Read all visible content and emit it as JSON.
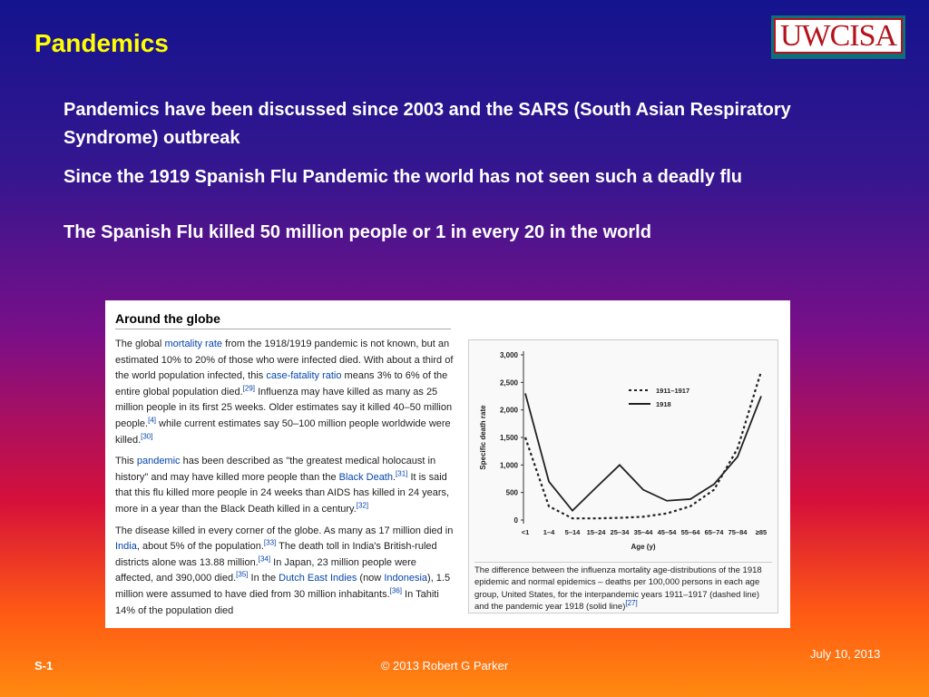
{
  "slide": {
    "title": "Pandemics",
    "logo": "UWCISA",
    "bullets": [
      "Pandemics have been discussed since 2003 and the SARS (South Asian Respiratory Syndrome) outbreak",
      "Since the 1919 Spanish Flu Pandemic the world has  not seen such a deadly flu",
      "The Spanish Flu killed 50 million people or 1 in every 20 in the world"
    ],
    "footer": {
      "left": "S-1",
      "center": "© 2013  Robert G Parker",
      "right": "July 10, 2013"
    }
  },
  "article": {
    "heading": "Around the globe",
    "paragraphs": [
      [
        {
          "t": "The global "
        },
        {
          "t": "mortality rate",
          "s": "link"
        },
        {
          "t": " from the 1918/1919 pandemic is not known, but an estimated 10% to 20% of those who were infected died. With about a third of the world population infected, this "
        },
        {
          "t": "case-fatality ratio",
          "s": "link"
        },
        {
          "t": " means 3% to 6% of the entire global population died."
        },
        {
          "t": "[29]",
          "s": "sup"
        },
        {
          "t": " Influenza may have killed as many as 25 million people in its first 25 weeks. Older estimates say it killed 40–50 million people."
        },
        {
          "t": "[4]",
          "s": "sup"
        },
        {
          "t": " while current estimates say 50–100 million people worldwide were killed."
        },
        {
          "t": "[30]",
          "s": "sup"
        }
      ],
      [
        {
          "t": "This "
        },
        {
          "t": "pandemic",
          "s": "link"
        },
        {
          "t": " has been described as \"the greatest medical holocaust in history\" and may have killed more people than the "
        },
        {
          "t": "Black Death",
          "s": "link"
        },
        {
          "t": "."
        },
        {
          "t": "[31]",
          "s": "sup"
        },
        {
          "t": " It is said that this flu killed more people in 24 weeks than AIDS has killed in 24 years, more in a year than the Black Death killed in a century."
        },
        {
          "t": "[32]",
          "s": "sup"
        }
      ],
      [
        {
          "t": "The disease killed in every corner of the globe. As many as 17 million died in "
        },
        {
          "t": "India",
          "s": "link"
        },
        {
          "t": ", about 5% of the population."
        },
        {
          "t": "[33]",
          "s": "sup"
        },
        {
          "t": " The death toll in India's British-ruled districts alone was 13.88 million."
        },
        {
          "t": "[34]",
          "s": "sup"
        },
        {
          "t": " In Japan, 23 million people were affected, and 390,000 died."
        },
        {
          "t": "[35]",
          "s": "sup"
        },
        {
          "t": " In the "
        },
        {
          "t": "Dutch East Indies",
          "s": "link"
        },
        {
          "t": " (now "
        },
        {
          "t": "Indonesia",
          "s": "link"
        },
        {
          "t": "), 1.5 million were assumed to have died from 30 million inhabitants."
        },
        {
          "t": "[36]",
          "s": "sup"
        },
        {
          "t": " In Tahiti 14% of the population died"
        }
      ]
    ]
  },
  "chart_data": {
    "type": "line",
    "y_label": "Specific death rate",
    "x_label": "Age (y)",
    "categories": [
      "<1",
      "1–4",
      "5–14",
      "15–24",
      "25–34",
      "35–44",
      "45–54",
      "55–64",
      "65–74",
      "75–84",
      "≥85"
    ],
    "series": [
      {
        "name": "1911–1917",
        "color": "#222222",
        "dash": true,
        "values": [
          1500,
          250,
          30,
          30,
          40,
          60,
          120,
          250,
          550,
          1300,
          2700
        ]
      },
      {
        "name": "1918",
        "color": "#222222",
        "dash": false,
        "values": [
          2300,
          700,
          170,
          590,
          1000,
          550,
          350,
          380,
          650,
          1150,
          2250
        ]
      }
    ],
    "ylim": [
      0,
      3000
    ],
    "yticks": [
      0,
      500,
      {
        "value": 1000,
        "label": "1,000"
      },
      {
        "value": 1500,
        "label": "1,500"
      },
      {
        "value": 2000,
        "label": "2,000"
      },
      {
        "value": 2500,
        "label": "2,500"
      },
      {
        "value": 3000,
        "label": "3,000"
      }
    ],
    "caption": [
      {
        "t": "The difference between the influenza mortality age-distributions of the 1918 epidemic and normal epidemics – deaths per 100,000 persons in each age group, United States, for the interpandemic years 1911–1917 (dashed line) and the pandemic year 1918 (solid line)"
      },
      {
        "t": "[27]",
        "s": "sup"
      }
    ]
  }
}
